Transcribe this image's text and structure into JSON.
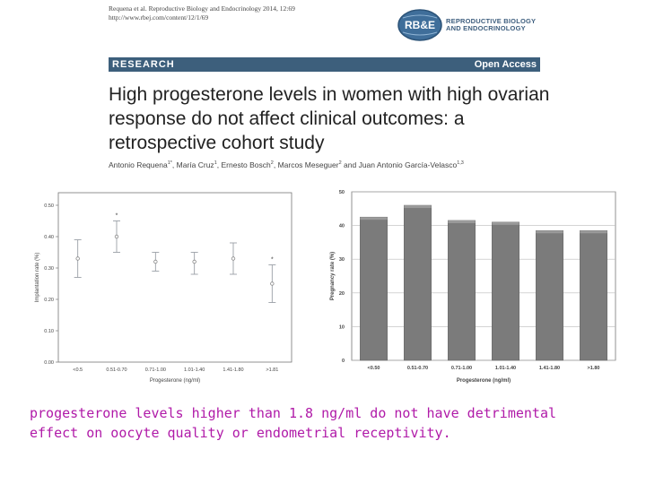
{
  "citation": {
    "line1": "Requena et al. Reproductive Biology and Endocrinology 2014, 12:69",
    "line2": "http://www.rbej.com/content/12/1/69"
  },
  "logo": {
    "mark": "RB&E",
    "line1": "REPRODUCTIVE BIOLOGY",
    "line2": "AND ENDOCRINOLOGY",
    "color": "#3f5f7f"
  },
  "banner": {
    "left": "RESEARCH",
    "right": "Open Access",
    "color": "#3d5f7c"
  },
  "paper_title": "High progesterone levels in women with high ovarian response do not affect clinical outcomes: a retrospective cohort study",
  "authors": [
    {
      "name": "Antonio Requena",
      "sup": "1*"
    },
    {
      "name": "María Cruz",
      "sup": "1"
    },
    {
      "name": "Ernesto Bosch",
      "sup": "2"
    },
    {
      "name": "Marcos Meseguer",
      "sup": "2"
    },
    {
      "name": "Juan Antonio García-Velasco",
      "sup": "1,3"
    }
  ],
  "chart_data": [
    {
      "type": "scatter",
      "title": "",
      "xlabel": "Progesterone (ng/ml)",
      "ylabel": "Implantation rate (%)",
      "categories": [
        "<0.5",
        "0.51-0.70",
        "0.71-1.00",
        "1.01-1.40",
        "1.41-1.80",
        ">1.81"
      ],
      "values": [
        0.33,
        0.4,
        0.32,
        0.32,
        0.33,
        0.25
      ],
      "error_low": [
        0.27,
        0.35,
        0.29,
        0.28,
        0.28,
        0.19
      ],
      "error_high": [
        0.39,
        0.45,
        0.35,
        0.35,
        0.38,
        0.31
      ],
      "markers": [
        "",
        "*",
        "",
        "",
        "",
        "*"
      ],
      "yticks": [
        "0.00",
        "0.10",
        "0.20",
        "0.30",
        "0.40",
        "0.50"
      ],
      "ylim": [
        0,
        0.5
      ],
      "grid": false,
      "marker_color": "#9aa0a6"
    },
    {
      "type": "bar",
      "title": "",
      "xlabel": "Progesterone (ng/ml)",
      "ylabel": "Pregnancy rate (%)",
      "categories": [
        "<0.50",
        "0.51-0.70",
        "0.71-1.00",
        "1.01-1.40",
        "1.41-1.80",
        ">1.80"
      ],
      "values": [
        42.5,
        46,
        41.5,
        41,
        38.5,
        38.5
      ],
      "yticks": [
        "0",
        "10",
        "20",
        "30",
        "40",
        "50"
      ],
      "ylim": [
        0,
        50
      ],
      "grid": true,
      "bar_color": "#7b7b7b"
    }
  ],
  "caption": "progesterone levels higher than 1.8 ng/ml do not have detrimental effect on oocyte quality or endometrial receptivity.",
  "caption_color": "#b01aa8"
}
